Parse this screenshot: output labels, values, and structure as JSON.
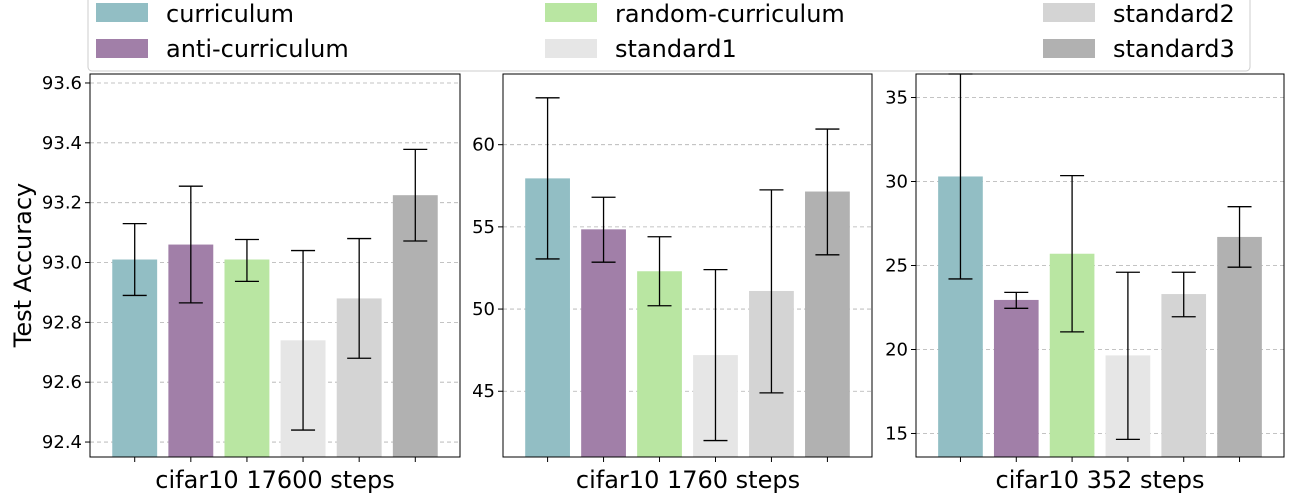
{
  "legend": {
    "placement": "top",
    "entries": [
      {
        "label": "curriculum",
        "color": "#92bec4"
      },
      {
        "label": "anti-curriculum",
        "color": "#a17fa8"
      },
      {
        "label": "random-curriculum",
        "color": "#b9e6a2"
      },
      {
        "label": "standard1",
        "color": "#e6e6e6"
      },
      {
        "label": "standard2",
        "color": "#d4d4d4"
      },
      {
        "label": "standard3",
        "color": "#b1b1b1"
      }
    ]
  },
  "ylabel": "Test Accuracy",
  "chart_data": [
    {
      "type": "bar",
      "xlabel": "cifar10 17600 steps",
      "ylim": [
        92.35,
        93.63
      ],
      "yticks": [
        92.4,
        92.6,
        92.8,
        93.0,
        93.2,
        93.4,
        93.6
      ],
      "ytick_labels": [
        "92.4",
        "92.6",
        "92.8",
        "93.0",
        "93.2",
        "93.4",
        "93.6"
      ],
      "grid": true,
      "series": [
        {
          "name": "curriculum",
          "value": 93.01,
          "err_low": 92.89,
          "err_high": 93.13
        },
        {
          "name": "anti-curriculum",
          "value": 93.06,
          "err_low": 92.865,
          "err_high": 93.255
        },
        {
          "name": "random-curriculum",
          "value": 93.01,
          "err_low": 92.937,
          "err_high": 93.077
        },
        {
          "name": "standard1",
          "value": 92.74,
          "err_low": 92.44,
          "err_high": 93.04
        },
        {
          "name": "standard2",
          "value": 92.88,
          "err_low": 92.68,
          "err_high": 93.08
        },
        {
          "name": "standard3",
          "value": 93.225,
          "err_low": 93.072,
          "err_high": 93.378
        }
      ]
    },
    {
      "type": "bar",
      "xlabel": "cifar10 1760 steps",
      "ylim": [
        41.0,
        64.3
      ],
      "yticks": [
        45,
        50,
        55,
        60
      ],
      "ytick_labels": [
        "45",
        "50",
        "55",
        "60"
      ],
      "grid": true,
      "series": [
        {
          "name": "curriculum",
          "value": 57.95,
          "err_low": 53.05,
          "err_high": 62.85
        },
        {
          "name": "anti-curriculum",
          "value": 54.85,
          "err_low": 52.85,
          "err_high": 56.8
        },
        {
          "name": "random-curriculum",
          "value": 52.3,
          "err_low": 50.2,
          "err_high": 54.4
        },
        {
          "name": "standard1",
          "value": 47.2,
          "err_low": 42.0,
          "err_high": 52.4
        },
        {
          "name": "standard2",
          "value": 51.1,
          "err_low": 44.9,
          "err_high": 57.25
        },
        {
          "name": "standard3",
          "value": 57.15,
          "err_low": 53.3,
          "err_high": 60.95
        }
      ]
    },
    {
      "type": "bar",
      "xlabel": "cifar10 352 steps",
      "ylim": [
        13.6,
        36.4
      ],
      "yticks": [
        15,
        20,
        25,
        30,
        35
      ],
      "ytick_labels": [
        "15",
        "20",
        "25",
        "30",
        "35"
      ],
      "grid": true,
      "series": [
        {
          "name": "curriculum",
          "value": 30.3,
          "err_low": 24.2,
          "err_high": 36.4
        },
        {
          "name": "anti-curriculum",
          "value": 22.95,
          "err_low": 22.45,
          "err_high": 23.4
        },
        {
          "name": "random-curriculum",
          "value": 25.7,
          "err_low": 21.05,
          "err_high": 30.35
        },
        {
          "name": "standard1",
          "value": 19.65,
          "err_low": 14.65,
          "err_high": 24.6
        },
        {
          "name": "standard2",
          "value": 23.3,
          "err_low": 21.95,
          "err_high": 24.6
        },
        {
          "name": "standard3",
          "value": 26.7,
          "err_low": 24.9,
          "err_high": 28.5
        }
      ]
    }
  ]
}
